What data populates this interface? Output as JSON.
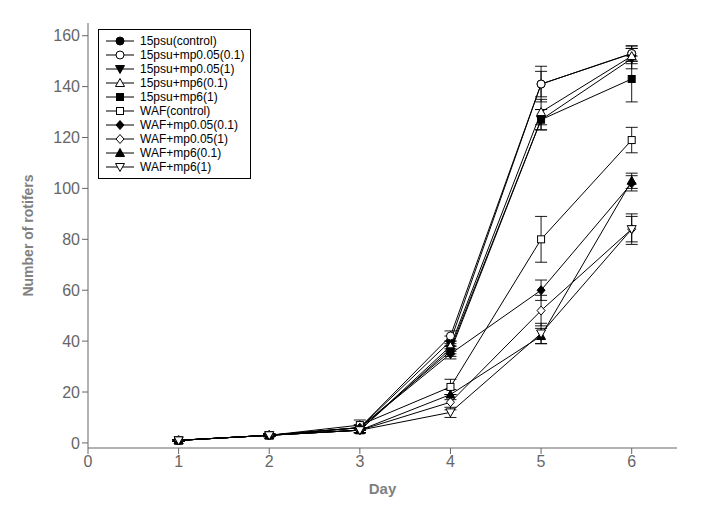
{
  "chart_data": {
    "type": "line",
    "x": [
      1,
      2,
      3,
      4,
      5,
      6
    ],
    "series": [
      {
        "name": "15psu(control)",
        "color": "#000000",
        "marker": "circle",
        "values": [
          1,
          3,
          6,
          40,
          141,
          153
        ],
        "yerr": [
          0.3,
          0.5,
          1,
          2,
          7,
          3
        ]
      },
      {
        "name": "15psu+mp0.05(0.1)",
        "color": "#000000",
        "marker": "circle-open",
        "values": [
          1,
          3,
          6,
          42,
          141,
          153
        ],
        "yerr": [
          0.3,
          0.5,
          1,
          2,
          5,
          3
        ]
      },
      {
        "name": "15psu+mp0.05(1)",
        "color": "#000000",
        "marker": "triangle-down",
        "values": [
          1,
          3,
          5,
          37,
          127,
          151
        ],
        "yerr": [
          0.3,
          0.5,
          1,
          2,
          4,
          4
        ]
      },
      {
        "name": "15psu+mp6(0.1)",
        "color": "#000000",
        "marker": "triangle-up-open",
        "values": [
          1,
          3,
          5,
          38,
          130,
          152
        ],
        "yerr": [
          0.3,
          0.5,
          1,
          2,
          5,
          3
        ]
      },
      {
        "name": "15psu+mp6(1)",
        "color": "#000000",
        "marker": "square",
        "values": [
          1,
          3,
          6,
          36,
          127,
          143
        ],
        "yerr": [
          0.3,
          0.5,
          1,
          2,
          4,
          9
        ]
      },
      {
        "name": "WAF(control)",
        "color": "#000000",
        "marker": "square-open",
        "values": [
          1,
          3,
          7,
          22,
          80,
          119
        ],
        "yerr": [
          0.3,
          0.5,
          2,
          3,
          9,
          5
        ]
      },
      {
        "name": "WAF+mp0.05(0.1)",
        "color": "#000000",
        "marker": "diamond",
        "values": [
          1,
          3,
          6,
          35,
          60,
          102
        ],
        "yerr": [
          0.3,
          0.5,
          1,
          2,
          4,
          3
        ]
      },
      {
        "name": "WAF+mp0.05(1)",
        "color": "#000000",
        "marker": "diamond-open",
        "values": [
          1,
          3,
          5,
          16,
          52,
          84
        ],
        "yerr": [
          0.3,
          0.5,
          1,
          3,
          6,
          5
        ]
      },
      {
        "name": "WAF+mp6(0.1)",
        "color": "#000000",
        "marker": "triangle-up",
        "values": [
          1,
          3,
          5,
          19,
          42,
          103
        ],
        "yerr": [
          0.3,
          0.5,
          1,
          2,
          3,
          3
        ]
      },
      {
        "name": "WAF+mp6(1)",
        "color": "#000000",
        "marker": "triangle-down-open",
        "values": [
          1,
          3,
          5,
          12,
          43,
          84
        ],
        "yerr": [
          0.3,
          0.5,
          1,
          2,
          4,
          6
        ]
      }
    ],
    "xlabel": "Day",
    "ylabel": "Number of rotifers",
    "xlim": [
      0,
      6.5
    ],
    "ylim": [
      -2,
      165
    ],
    "xticks": [
      0,
      1,
      2,
      3,
      4,
      5,
      6
    ],
    "yticks": [
      0,
      20,
      40,
      60,
      80,
      100,
      120,
      140,
      160
    ],
    "legend": "upper left",
    "grid": false
  }
}
